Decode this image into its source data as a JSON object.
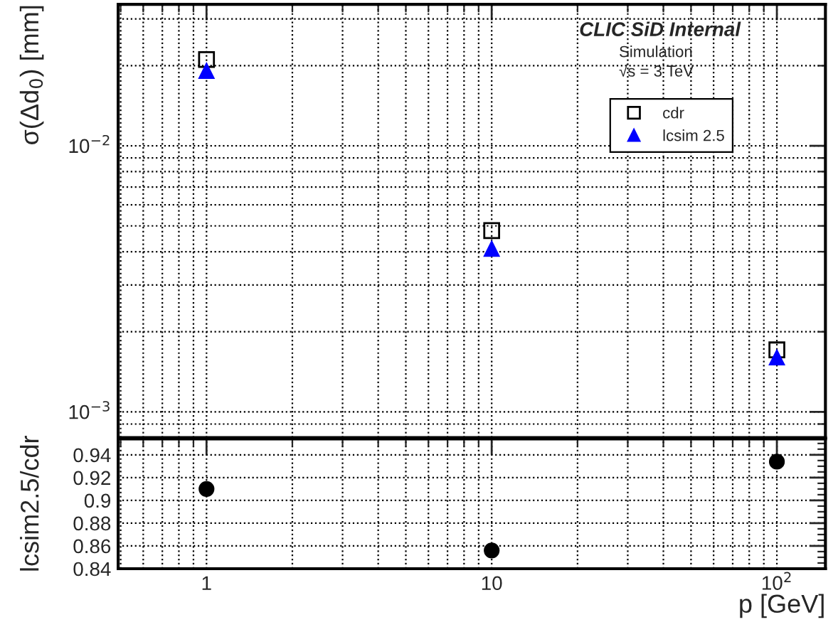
{
  "chart_data": [
    {
      "type": "scatter",
      "ylabel": "σ(Δd$_{0}$) [mm]",
      "annotations": [
        "CLIC SiD Internal",
        "Simulation",
        "√s = 3 TeV"
      ],
      "x": [
        1,
        10,
        100
      ],
      "series": [
        {
          "name": "cdr",
          "color": "#000000",
          "marker": "square",
          "values": [
            0.0211,
            0.0048,
            0.00171
          ]
        },
        {
          "name": "lcsim 2.5",
          "color": "#0000ff",
          "marker": "triangle",
          "values": [
            0.0191,
            0.0041,
            0.0016
          ]
        }
      ],
      "log": "xy",
      "xlim": [
        0.49,
        148
      ],
      "ylim": [
        0.0008,
        0.034
      ],
      "xticks": [
        {
          "value": 1,
          "label": null
        },
        {
          "value": 10,
          "label": null
        },
        {
          "value": 100,
          "label": null
        }
      ],
      "yticks": [
        {
          "value": 0.001,
          "label": "10$^{−3}$"
        },
        {
          "value": 0.01,
          "label": "10$^{−2}$"
        }
      ],
      "tick_labels": "y",
      "grid": true,
      "legend": "top right"
    },
    {
      "type": "scatter",
      "xlabel": "p [GeV]",
      "ylabel": "lcsim2.5/cdr",
      "x": [
        1,
        10,
        100
      ],
      "series": [
        {
          "color": "#000000",
          "marker": "circle",
          "values": [
            0.91,
            0.856,
            0.934
          ]
        }
      ],
      "log": "x",
      "xlim": [
        0.49,
        148
      ],
      "ylim": [
        0.84,
        0.954
      ],
      "xticks": [
        1,
        10,
        {
          "value": 100,
          "label": "10$^{2}$"
        }
      ],
      "yticks": [
        0.84,
        0.86,
        0.88,
        {
          "value": 0.9,
          "label": "0.9"
        },
        0.92,
        0.94
      ],
      "grid": true
    }
  ]
}
